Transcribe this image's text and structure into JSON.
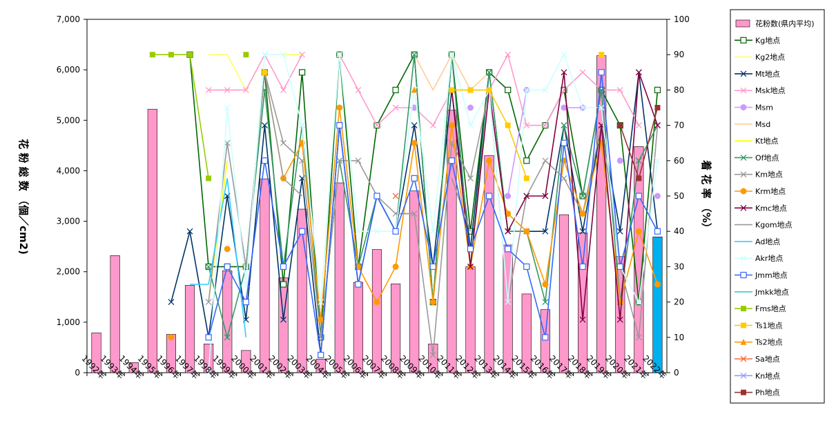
{
  "chart_data": {
    "type": "bar",
    "categories": [
      "1992年",
      "1993年",
      "1994年",
      "1995年",
      "1996年",
      "1997年",
      "1998年",
      "1999年",
      "2000年",
      "2001年",
      "2002年",
      "2003年",
      "2004年",
      "2005年",
      "2006年",
      "2007年",
      "2008年",
      "2009年",
      "2010年",
      "2011年",
      "2012年",
      "2013年",
      "2014年",
      "2015年",
      "2016年",
      "2017年",
      "2018年",
      "2019年",
      "2020年",
      "2021年",
      "2022年"
    ],
    "ylabel_left": "花 粉 総 数 （個／cm2)",
    "ylabel_right": "着 花 率 （%）",
    "y_left_range": [
      0,
      7000
    ],
    "y_left_ticks": [
      "0",
      "1,000",
      "2,000",
      "3,000",
      "4,000",
      "5,000",
      "6,000",
      "7,000"
    ],
    "y_right_range": [
      0,
      100
    ],
    "y_right_ticks": [
      "0",
      "10",
      "20",
      "30",
      "40",
      "50",
      "60",
      "70",
      "80",
      "90",
      "100"
    ],
    "bar_series": {
      "name": "花粉数(県内平均)",
      "color": "#ff99cc",
      "highlight_color": "#00b0f0",
      "highlight_index": 30,
      "values": [
        790,
        2320,
        200,
        5220,
        760,
        1730,
        570,
        2020,
        440,
        3840,
        1880,
        3240,
        270,
        3760,
        1790,
        2440,
        1760,
        3600,
        570,
        5200,
        2100,
        4300,
        2530,
        1560,
        1250,
        3130,
        2770,
        6280,
        2300,
        4480,
        2690
      ]
    },
    "line_series": [
      {
        "name": "Kg地点",
        "color": "#006600",
        "marker": "square-open",
        "values": [
          null,
          null,
          null,
          null,
          null,
          90,
          30,
          30,
          30,
          85,
          25,
          85,
          10,
          90,
          30,
          70,
          80,
          90,
          20,
          90,
          40,
          85,
          80,
          60,
          70,
          80,
          50,
          80,
          70,
          20,
          80
        ]
      },
      {
        "name": "Kg2地点",
        "color": "#ffff66",
        "marker": "none",
        "values": [
          null,
          null,
          null,
          null,
          null,
          null,
          90,
          90,
          80,
          90,
          90,
          90,
          null,
          null,
          null,
          null,
          null,
          null,
          null,
          null,
          null,
          null,
          null,
          null,
          null,
          null,
          null,
          null,
          null,
          null,
          null
        ]
      },
      {
        "name": "Mt地点",
        "color": "#003366",
        "marker": "x",
        "values": [
          null,
          null,
          null,
          null,
          20,
          40,
          10,
          50,
          15,
          70,
          15,
          55,
          5,
          70,
          25,
          50,
          40,
          70,
          30,
          80,
          35,
          85,
          40,
          40,
          40,
          70,
          40,
          70,
          40,
          85,
          40
        ]
      },
      {
        "name": "Msk地点",
        "color": "#ff99cc",
        "marker": "x",
        "values": [
          null,
          null,
          null,
          null,
          null,
          null,
          80,
          80,
          80,
          90,
          80,
          90,
          null,
          90,
          80,
          70,
          75,
          75,
          70,
          80,
          80,
          80,
          90,
          70,
          70,
          80,
          85,
          80,
          80,
          70,
          null
        ]
      },
      {
        "name": "Msm",
        "color": "#cc99ff",
        "marker": "circle",
        "values": [
          null,
          null,
          null,
          null,
          null,
          null,
          null,
          null,
          null,
          null,
          null,
          null,
          null,
          null,
          null,
          null,
          null,
          75,
          null,
          null,
          75,
          null,
          50,
          80,
          null,
          75,
          75,
          null,
          60,
          null,
          50
        ]
      },
      {
        "name": "Msd",
        "color": "#ffcc99",
        "marker": "none",
        "values": [
          null,
          null,
          null,
          null,
          null,
          null,
          null,
          null,
          null,
          null,
          null,
          null,
          null,
          null,
          null,
          null,
          null,
          90,
          80,
          90,
          80,
          85,
          null,
          null,
          null,
          null,
          null,
          null,
          null,
          null,
          null
        ]
      },
      {
        "name": "Kt地点",
        "color": "#ffff00",
        "marker": "none",
        "values": [
          null,
          null,
          null,
          null,
          null,
          null,
          20,
          60,
          null,
          null,
          null,
          null,
          20,
          null,
          65,
          null,
          70,
          null,
          null,
          null,
          null,
          null,
          null,
          null,
          null,
          null,
          null,
          null,
          null,
          null,
          null
        ]
      },
      {
        "name": "Of地点",
        "color": "#339966",
        "marker": "x",
        "values": [
          null,
          null,
          null,
          null,
          null,
          null,
          30,
          10,
          30,
          80,
          30,
          70,
          10,
          60,
          30,
          50,
          40,
          90,
          20,
          90,
          30,
          85,
          40,
          40,
          20,
          70,
          50,
          80,
          20,
          60,
          70
        ]
      },
      {
        "name": "Km地点",
        "color": "#999999",
        "marker": "x",
        "values": [
          null,
          null,
          null,
          null,
          null,
          null,
          20,
          65,
          30,
          85,
          65,
          60,
          10,
          60,
          60,
          50,
          45,
          45,
          5,
          65,
          55,
          80,
          20,
          50,
          60,
          55,
          45,
          70,
          30,
          10,
          70
        ]
      },
      {
        "name": "Krm地点",
        "color": "#ff9900",
        "marker": "circle",
        "values": [
          null,
          null,
          null,
          null,
          10,
          null,
          null,
          35,
          null,
          85,
          55,
          65,
          15,
          75,
          30,
          20,
          30,
          65,
          20,
          70,
          30,
          60,
          45,
          40,
          25,
          60,
          45,
          65,
          20,
          40,
          25
        ]
      },
      {
        "name": "Kmc地点",
        "color": "#800040",
        "marker": "x",
        "values": [
          null,
          null,
          null,
          null,
          null,
          null,
          null,
          null,
          null,
          null,
          null,
          null,
          null,
          null,
          null,
          null,
          null,
          null,
          null,
          80,
          30,
          80,
          40,
          50,
          50,
          85,
          15,
          70,
          15,
          85,
          70
        ]
      },
      {
        "name": "Kgom地点",
        "color": "#999999",
        "marker": "none",
        "values": [
          null,
          null,
          null,
          null,
          null,
          null,
          null,
          null,
          null,
          85,
          55,
          50,
          null,
          null,
          null,
          null,
          45,
          45,
          null,
          55,
          40,
          null,
          null,
          null,
          null,
          null,
          null,
          null,
          null,
          null,
          null
        ]
      },
      {
        "name": "Ad地点",
        "color": "#33ccff",
        "marker": "none",
        "values": [
          null,
          null,
          null,
          null,
          null,
          25,
          25,
          55,
          10,
          null,
          null,
          null,
          null,
          null,
          null,
          null,
          null,
          null,
          null,
          null,
          null,
          null,
          null,
          null,
          null,
          null,
          null,
          null,
          null,
          null,
          null
        ]
      },
      {
        "name": "Akr地点",
        "color": "#ccffff",
        "marker": "x",
        "values": [
          null,
          null,
          null,
          null,
          null,
          null,
          0,
          75,
          25,
          90,
          90,
          70,
          20,
          90,
          40,
          40,
          40,
          80,
          40,
          90,
          70,
          80,
          20,
          80,
          80,
          90,
          75,
          75,
          30,
          20,
          60
        ]
      },
      {
        "name": "Jmm地点",
        "color": "#3366ff",
        "marker": "square-open",
        "values": [
          null,
          null,
          null,
          null,
          null,
          null,
          10,
          30,
          20,
          60,
          30,
          40,
          5,
          70,
          25,
          50,
          40,
          55,
          30,
          60,
          35,
          50,
          35,
          30,
          10,
          65,
          30,
          85,
          30,
          50,
          40
        ]
      },
      {
        "name": "Jmkk地点",
        "color": "#33cccc",
        "marker": "none",
        "values": [
          null,
          null,
          null,
          null,
          null,
          null,
          null,
          null,
          null,
          null,
          null,
          null,
          null,
          null,
          null,
          null,
          null,
          null,
          null,
          null,
          null,
          null,
          null,
          null,
          null,
          null,
          null,
          null,
          null,
          null,
          null
        ]
      },
      {
        "name": "Fms地点",
        "color": "#99cc00",
        "marker": "square",
        "values": [
          null,
          null,
          null,
          90,
          90,
          90,
          55,
          null,
          90,
          null,
          null,
          null,
          null,
          null,
          null,
          null,
          null,
          null,
          null,
          null,
          null,
          null,
          null,
          null,
          null,
          null,
          null,
          null,
          null,
          null,
          null
        ]
      },
      {
        "name": "Ts1地点",
        "color": "#ffcc00",
        "marker": "square",
        "values": [
          null,
          null,
          null,
          null,
          null,
          null,
          null,
          null,
          null,
          85,
          null,
          null,
          null,
          null,
          null,
          null,
          null,
          null,
          null,
          80,
          80,
          80,
          70,
          55,
          null,
          null,
          null,
          90,
          null,
          null,
          null
        ]
      },
      {
        "name": "Ts2地点",
        "color": "#ff9900",
        "marker": "triangle",
        "values": [
          null,
          null,
          null,
          null,
          null,
          null,
          null,
          null,
          null,
          null,
          null,
          null,
          null,
          null,
          null,
          null,
          null,
          80,
          null,
          null,
          null,
          null,
          null,
          null,
          null,
          null,
          null,
          null,
          null,
          null,
          null
        ]
      },
      {
        "name": "Sa地点",
        "color": "#ff6633",
        "marker": "x",
        "values": [
          null,
          null,
          null,
          null,
          null,
          null,
          null,
          null,
          null,
          null,
          null,
          null,
          null,
          null,
          null,
          null,
          50,
          null,
          null,
          null,
          null,
          null,
          null,
          null,
          null,
          null,
          null,
          null,
          null,
          null,
          null
        ]
      },
      {
        "name": "Kn地点",
        "color": "#9999ff",
        "marker": "x",
        "values": [
          null,
          null,
          null,
          null,
          null,
          null,
          null,
          null,
          null,
          null,
          null,
          null,
          null,
          null,
          null,
          null,
          null,
          null,
          null,
          null,
          null,
          null,
          null,
          null,
          null,
          null,
          null,
          null,
          null,
          null,
          null
        ]
      },
      {
        "name": "Ph地点",
        "color": "#993333",
        "marker": "square",
        "values": [
          null,
          null,
          null,
          null,
          null,
          null,
          null,
          null,
          null,
          null,
          null,
          null,
          null,
          null,
          null,
          null,
          null,
          null,
          null,
          null,
          null,
          null,
          null,
          null,
          null,
          null,
          null,
          null,
          70,
          55,
          75
        ]
      }
    ]
  }
}
